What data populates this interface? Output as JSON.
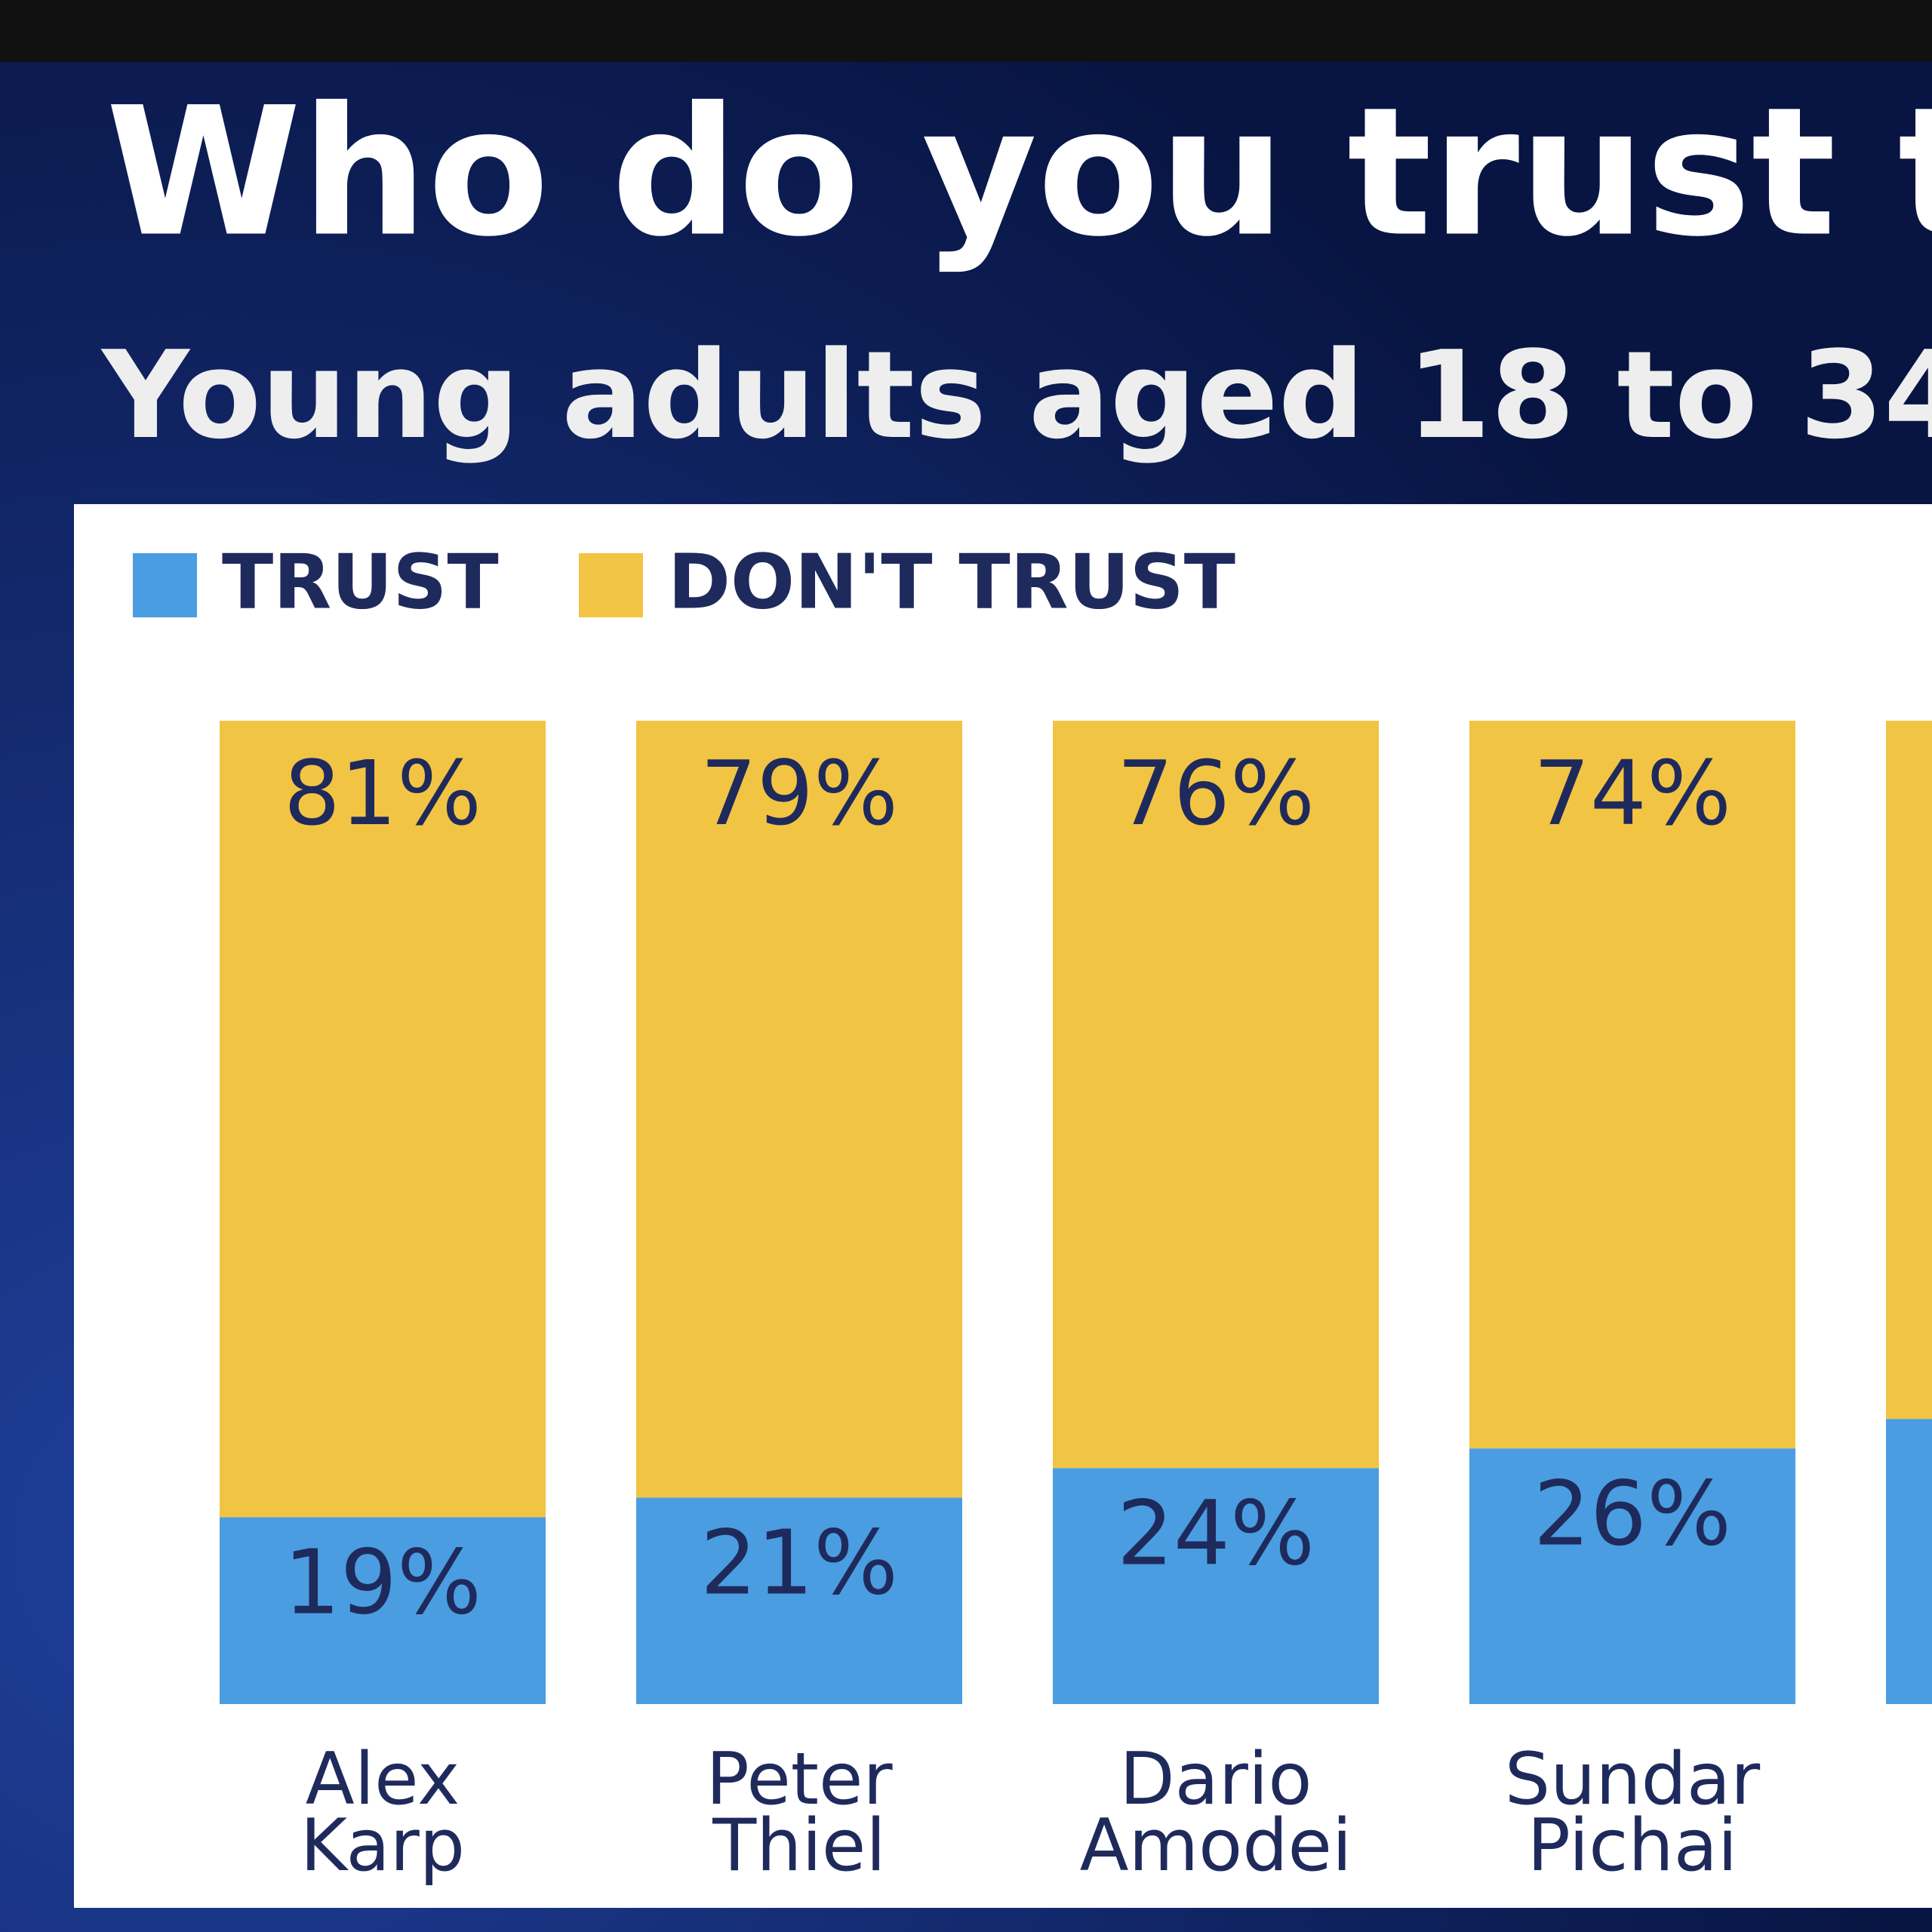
{
  "chart_data": {
    "type": "stacked-bar",
    "title": "Who do you trust to a",
    "subtitle": "Young adults aged 18 to 34",
    "categories": [
      [
        "Alex",
        "Karp"
      ],
      [
        "Peter",
        "Thiel"
      ],
      [
        "Dario",
        "Amodei"
      ],
      [
        "Sundar",
        "Pichai"
      ],
      null
    ],
    "series": [
      {
        "name": "TRUST",
        "color": "#4a9de0",
        "values": [
          19,
          21,
          24,
          26,
          29
        ],
        "value_labels": [
          "19%",
          "21%",
          "24%",
          "26%",
          null
        ]
      },
      {
        "name": "DON'T TRUST",
        "color": "#f2c444",
        "values": [
          81,
          79,
          76,
          74,
          71
        ],
        "value_labels": [
          "81%",
          "79%",
          "76%",
          "74%",
          null
        ]
      }
    ],
    "ylim": [
      0,
      100
    ]
  }
}
